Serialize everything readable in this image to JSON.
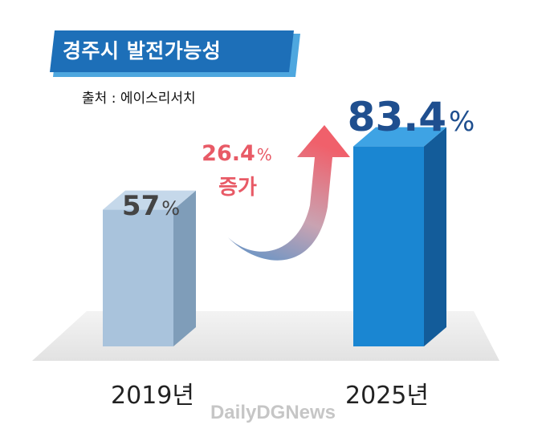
{
  "title": "경주시 발전가능성",
  "source": {
    "label": "출처",
    "separator": ":",
    "value": "에이스리서치"
  },
  "colors": {
    "banner_dark": "#1d6fb8",
    "banner_light": "#4ea7df",
    "bar_2019_front": "#a9c3dc",
    "bar_2019_side": "#7f9db9",
    "bar_2019_top": "#c5d8ea",
    "bar_2025_front": "#1a86d2",
    "bar_2025_side": "#135c9a",
    "bar_2025_top": "#3ea3e4",
    "label_dark": "#444444",
    "label_blue": "#1f4f8f",
    "increase": "#e85a66",
    "floor": "#e9e9e9"
  },
  "chart_data": {
    "type": "bar",
    "title": "경주시 발전가능성",
    "categories": [
      "2019년",
      "2025년"
    ],
    "values": [
      57,
      83.4
    ],
    "value_labels": [
      {
        "number": "57",
        "unit": "%"
      },
      {
        "number": "83.4",
        "unit": "%"
      }
    ],
    "annotation": {
      "number": "26.4",
      "unit": "%",
      "text": "증가"
    },
    "ylim": [
      0,
      100
    ]
  },
  "watermark": "DailyDGNews"
}
